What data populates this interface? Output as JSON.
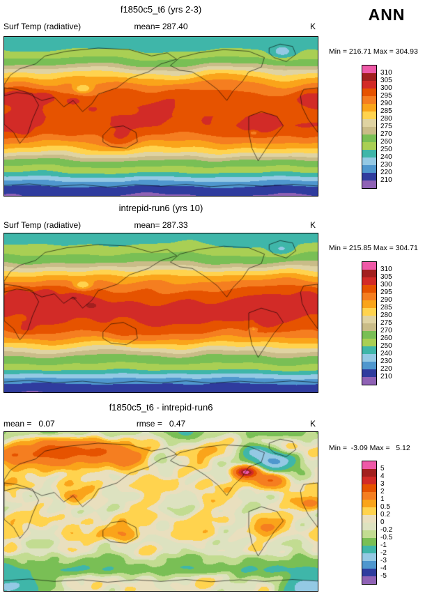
{
  "corner_label": "ANN",
  "panels": [
    {
      "title": "f1850c5_t6 (yrs 2-3)",
      "subtitle_left": "Surf Temp (radiative)",
      "subtitle_center": "mean= 287.40",
      "subtitle_right": "K",
      "stats": "Min = 216.71 Max = 304.93"
    },
    {
      "title": "intrepid-run6 (yrs 10)",
      "subtitle_left": "Surf Temp (radiative)",
      "subtitle_center": "mean= 287.33",
      "subtitle_right": "K",
      "stats": "Min = 215.85 Max = 304.71"
    },
    {
      "title": "f1850c5_t6 - intrepid-run6",
      "subtitle_left": "mean =   0.07",
      "subtitle_center": "rmse =   0.47",
      "subtitle_right": "K",
      "stats": "Min =  -3.09 Max =   5.12"
    }
  ],
  "colorbars": [
    {
      "labels_top_to_bottom": [
        "310",
        "305",
        "300",
        "295",
        "290",
        "285",
        "280",
        "275",
        "270",
        "260",
        "250",
        "240",
        "230",
        "220",
        "210"
      ],
      "colors_top_to_bottom": [
        "#EE59A7",
        "#A2201F",
        "#D22B27",
        "#E65300",
        "#F57E20",
        "#FAA41A",
        "#FFD34E",
        "#DFD3A2",
        "#C9BC88",
        "#79BF55",
        "#A9CF54",
        "#3FB6A9",
        "#94C9E4",
        "#4F97CE",
        "#2F3C9E",
        "#8F62B5"
      ]
    },
    {
      "labels_top_to_bottom": [
        "5",
        "4",
        "3",
        "2",
        "1",
        "0.5",
        "0.2",
        "0",
        "-0.2",
        "-0.5",
        "-1",
        "-2",
        "-3",
        "-4",
        "-5"
      ],
      "colors_top_to_bottom": [
        "#EE59A7",
        "#A2201F",
        "#D22B27",
        "#E65300",
        "#F57E20",
        "#FAA41A",
        "#FFD34E",
        "#E9DFBE",
        "#DDE2C0",
        "#C2DC91",
        "#79BF55",
        "#3FB6A9",
        "#94C9E4",
        "#4F97CE",
        "#2F3C9E",
        "#8F62B5"
      ]
    }
  ],
  "chart_data": [
    {
      "type": "heatmap",
      "subtype": "global filled-contour map",
      "title": "f1850c5_t6 (yrs 2-3)",
      "variable": "Surf Temp (radiative)",
      "units": "K",
      "season": "ANN",
      "mean": 287.4,
      "min": 216.71,
      "max": 304.93,
      "contour_levels": [
        210,
        220,
        230,
        240,
        250,
        260,
        270,
        275,
        280,
        285,
        290,
        295,
        300,
        305,
        310
      ],
      "legend_position": "right"
    },
    {
      "type": "heatmap",
      "subtype": "global filled-contour map",
      "title": "intrepid-run6 (yrs 10)",
      "variable": "Surf Temp (radiative)",
      "units": "K",
      "season": "ANN",
      "mean": 287.33,
      "min": 215.85,
      "max": 304.71,
      "contour_levels": [
        210,
        220,
        230,
        240,
        250,
        260,
        270,
        275,
        280,
        285,
        290,
        295,
        300,
        305,
        310
      ],
      "legend_position": "right"
    },
    {
      "type": "heatmap",
      "subtype": "global filled-contour difference map",
      "title": "f1850c5_t6 - intrepid-run6",
      "variable": "Surf Temp (radiative)",
      "units": "K",
      "season": "ANN",
      "mean": 0.07,
      "rmse": 0.47,
      "min": -3.09,
      "max": 5.12,
      "contour_levels": [
        -5,
        -4,
        -3,
        -2,
        -1,
        -0.5,
        -0.2,
        0,
        0.2,
        0.5,
        1,
        2,
        3,
        4,
        5
      ],
      "legend_position": "right"
    }
  ]
}
